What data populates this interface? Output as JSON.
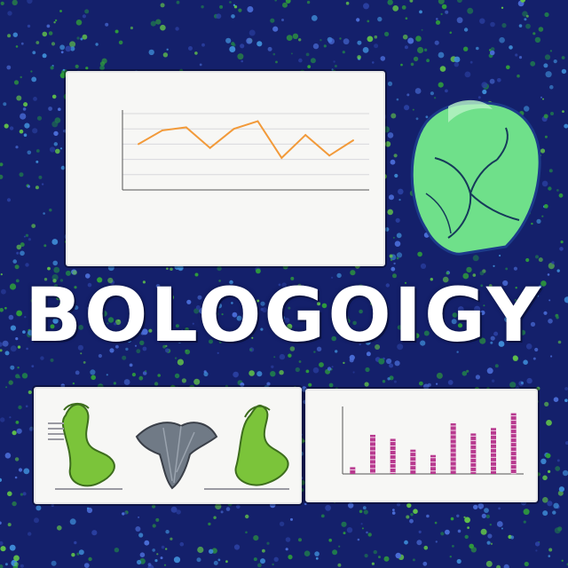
{
  "headline": "BOLOGOIGY",
  "colors": {
    "background": "#14206b",
    "speckle_green": "#2f9e3b",
    "speckle_blue": "#4a6dd8",
    "line": "#f29a3a",
    "bars": "#b83a8f",
    "brain": "#6fe08a",
    "specimen_green": "#7bc43a",
    "specimen_gray": "#707a86"
  },
  "icons": {
    "brain": "brain-icon",
    "specimen_left": "green-specimen-icon",
    "specimen_middle": "gray-specimen-icon",
    "specimen_right": "green-specimen-icon"
  },
  "chart_data": [
    {
      "type": "line",
      "series": [
        {
          "values": [
            60,
            78,
            82,
            55,
            80,
            90,
            42,
            72,
            45,
            65
          ]
        }
      ],
      "ylim": [
        0,
        100
      ],
      "grid": true
    },
    {
      "type": "bar",
      "series": [
        {
          "values": [
            10,
            58,
            52,
            36,
            28,
            75,
            60,
            68,
            90
          ]
        }
      ],
      "ylim": [
        0,
        100
      ],
      "grid": false
    }
  ]
}
